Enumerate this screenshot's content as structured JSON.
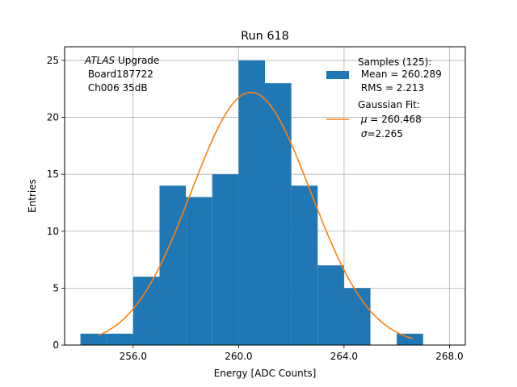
{
  "chart_data": {
    "type": "bar",
    "title": "Run 618",
    "xlabel": "Energy [ADC Counts]",
    "ylabel": "Entries",
    "xlim": [
      253.4,
      268.6
    ],
    "ylim": [
      0,
      26.2
    ],
    "xticks": [
      256.0,
      260.0,
      264.0,
      268.0
    ],
    "xtick_labels": [
      "256.0",
      "260.0",
      "264.0",
      "268.0"
    ],
    "yticks": [
      0,
      5,
      10,
      15,
      20,
      25
    ],
    "ytick_labels": [
      "0",
      "5",
      "10",
      "15",
      "20",
      "25"
    ],
    "grid": true,
    "histogram": {
      "bin_edges": [
        254,
        255,
        256,
        257,
        258,
        259,
        260,
        261,
        262,
        263,
        264,
        265,
        266,
        267
      ],
      "counts": [
        1,
        1,
        6,
        14,
        13,
        15,
        25,
        23,
        14,
        7,
        5,
        0,
        1
      ],
      "color": "#1f77b4"
    },
    "fit": {
      "type": "gaussian",
      "amplitude": 22.2,
      "mu": 260.468,
      "sigma": 2.265,
      "x_range": [
        254.7,
        266.6
      ],
      "color": "#ff7f0e"
    },
    "annotation": {
      "italic": "ATLAS",
      "upgrade": " Upgrade",
      "line2": " Board187722",
      "line3": " Ch006 35dB"
    },
    "legend": {
      "placement": "top-right",
      "samples": {
        "line1": "Samples (125):",
        "line2": " Mean = 260.289",
        "line3": " RMS = 2.213"
      },
      "fit": {
        "line1": "Gaussian Fit:",
        "mu_symbol": "μ",
        "mu_rest": " = 260.468",
        "sigma_symbol": "σ",
        "sigma_rest": "=2.265"
      }
    }
  }
}
